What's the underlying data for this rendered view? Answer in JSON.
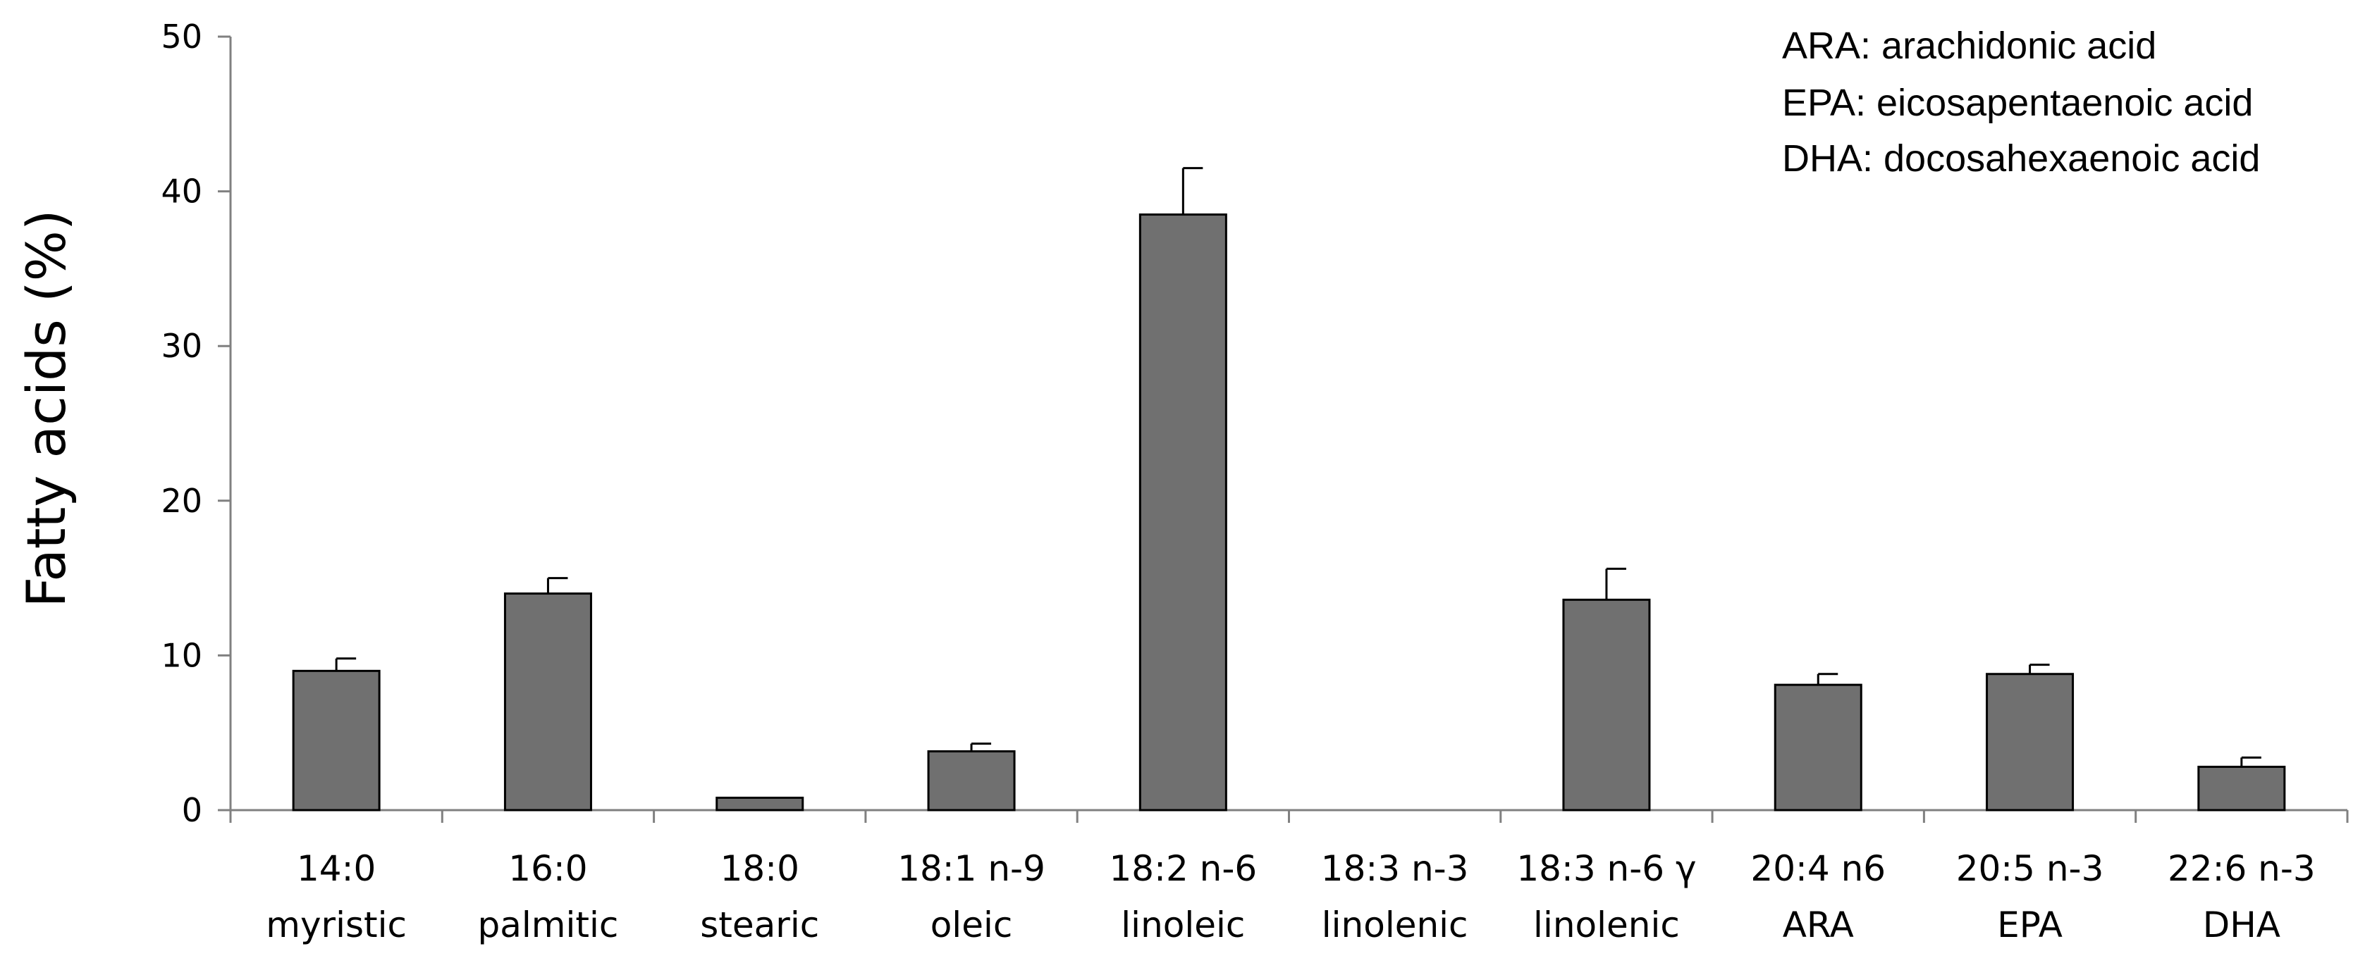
{
  "chart_data": {
    "type": "bar",
    "title": "",
    "xlabel": "",
    "ylabel": "Fatty acids (%)",
    "ylim": [
      0,
      50
    ],
    "yticks": [
      "0",
      "10",
      "20",
      "30",
      "40",
      "50"
    ],
    "grid": false,
    "bar_color": "#707070",
    "categories": [
      {
        "line1": "14:0",
        "line2": "myristic"
      },
      {
        "line1": "16:0",
        "line2": "palmitic"
      },
      {
        "line1": "18:0",
        "line2": "stearic"
      },
      {
        "line1": "18:1 n-9",
        "line2": "oleic"
      },
      {
        "line1": "18:2 n-6",
        "line2": "linoleic"
      },
      {
        "line1": "18:3 n-3",
        "line2": "linolenic"
      },
      {
        "line1": "18:3 n-6 γ",
        "line2": "linolenic"
      },
      {
        "line1": "20:4 n6",
        "line2": "ARA"
      },
      {
        "line1": "20:5 n-3",
        "line2": "EPA"
      },
      {
        "line1": "22:6 n-3",
        "line2": "DHA"
      }
    ],
    "values": [
      9.0,
      14.0,
      0.8,
      3.8,
      38.5,
      0,
      13.6,
      8.1,
      8.8,
      2.8
    ],
    "errors": [
      0.8,
      1.0,
      0,
      0.5,
      3.0,
      0,
      2.0,
      0.7,
      0.6,
      0.6
    ],
    "annotations": [
      "ARA: arachidonic acid",
      "EPA: eicosapentaenoic acid",
      "DHA: docosahexaenoic acid"
    ]
  }
}
